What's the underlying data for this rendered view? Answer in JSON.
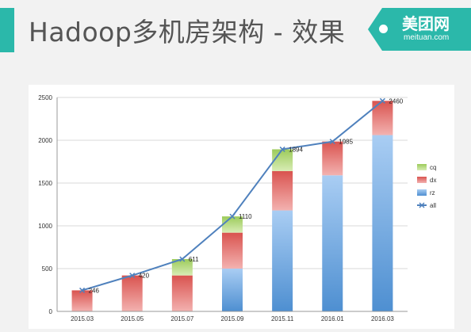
{
  "slide": {
    "title": "Hadoop多机房架构 - 效果",
    "brand": {
      "name": "美团网",
      "url": "meituan.com"
    }
  },
  "colors": {
    "accent": "#2bb8aa",
    "rz": "#5b9bd5",
    "dx": "#e06a66",
    "cq": "#a5cf5e",
    "all": "#4f81bd"
  },
  "chart_data": {
    "type": "bar",
    "stacked": true,
    "categories": [
      "2015.03",
      "2015.05",
      "2015.07",
      "2015.09",
      "2015.11",
      "2016.01",
      "2016.03"
    ],
    "series": [
      {
        "name": "rz",
        "type": "bar",
        "values": [
          0,
          0,
          0,
          500,
          1180,
          1590,
          2060
        ]
      },
      {
        "name": "dx",
        "type": "bar",
        "values": [
          246,
          420,
          420,
          420,
          460,
          395,
          400
        ]
      },
      {
        "name": "cq",
        "type": "bar",
        "values": [
          0,
          0,
          191,
          190,
          254,
          0,
          0
        ]
      },
      {
        "name": "all",
        "type": "line",
        "values": [
          246,
          420,
          611,
          1110,
          1894,
          1985,
          2460
        ]
      }
    ],
    "data_labels": [
      "246",
      "420",
      "611",
      "1110",
      "1894",
      "1985",
      "2460"
    ],
    "y_ticks": [
      "0",
      "500",
      "1000",
      "1500",
      "2000",
      "2500"
    ],
    "ylim": [
      0,
      2500
    ],
    "grid": true,
    "legend": {
      "position": "right",
      "entries": [
        "cq",
        "dx",
        "rz",
        "all"
      ]
    }
  }
}
